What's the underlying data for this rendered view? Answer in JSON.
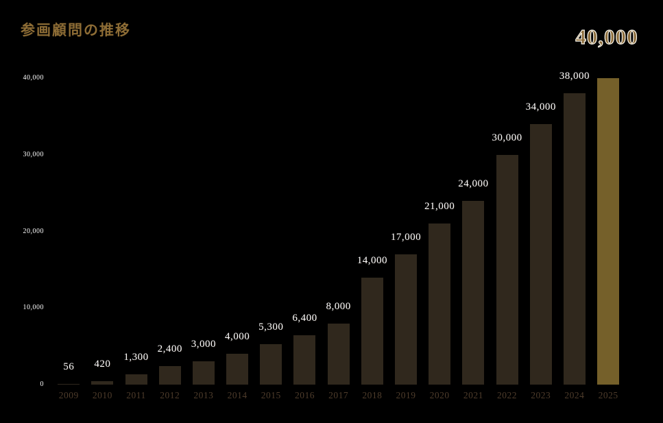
{
  "title": "参画顧問の推移",
  "chart_data": {
    "type": "bar",
    "title": "参画顧問の推移",
    "categories": [
      "2009",
      "2010",
      "2011",
      "2012",
      "2013",
      "2014",
      "2015",
      "2016",
      "2017",
      "2018",
      "2019",
      "2020",
      "2021",
      "2022",
      "2023",
      "2024",
      "2025"
    ],
    "values": [
      56,
      420,
      1300,
      2400,
      3000,
      4000,
      5300,
      6400,
      8000,
      14000,
      17000,
      21000,
      24000,
      30000,
      34000,
      38000,
      40000
    ],
    "value_labels": [
      "56",
      "420",
      "1,300",
      "2,400",
      "3,000",
      "4,000",
      "5,300",
      "6,400",
      "8,000",
      "14,000",
      "17,000",
      "21,000",
      "24,000",
      "30,000",
      "34,000",
      "38,000",
      "40,000"
    ],
    "highlight_label": "40,000",
    "highlight_index": 16,
    "ylim": [
      0,
      40000
    ],
    "y_ticks": {
      "values": [
        0,
        10000,
        20000,
        30000,
        40000
      ],
      "labels": [
        "0",
        "10,000",
        "20,000",
        "30,000",
        "40,000"
      ]
    },
    "grid": false,
    "legend": false,
    "colors": {
      "background": "#000000",
      "bar": "#30281d",
      "highlight_bar": "#75602a",
      "value_label": "#ffffff",
      "year_label": "#4e3c2b",
      "title": "#8d6c35",
      "highlight_text": "#8a6a38",
      "highlight_outline": "#ffffff"
    }
  }
}
